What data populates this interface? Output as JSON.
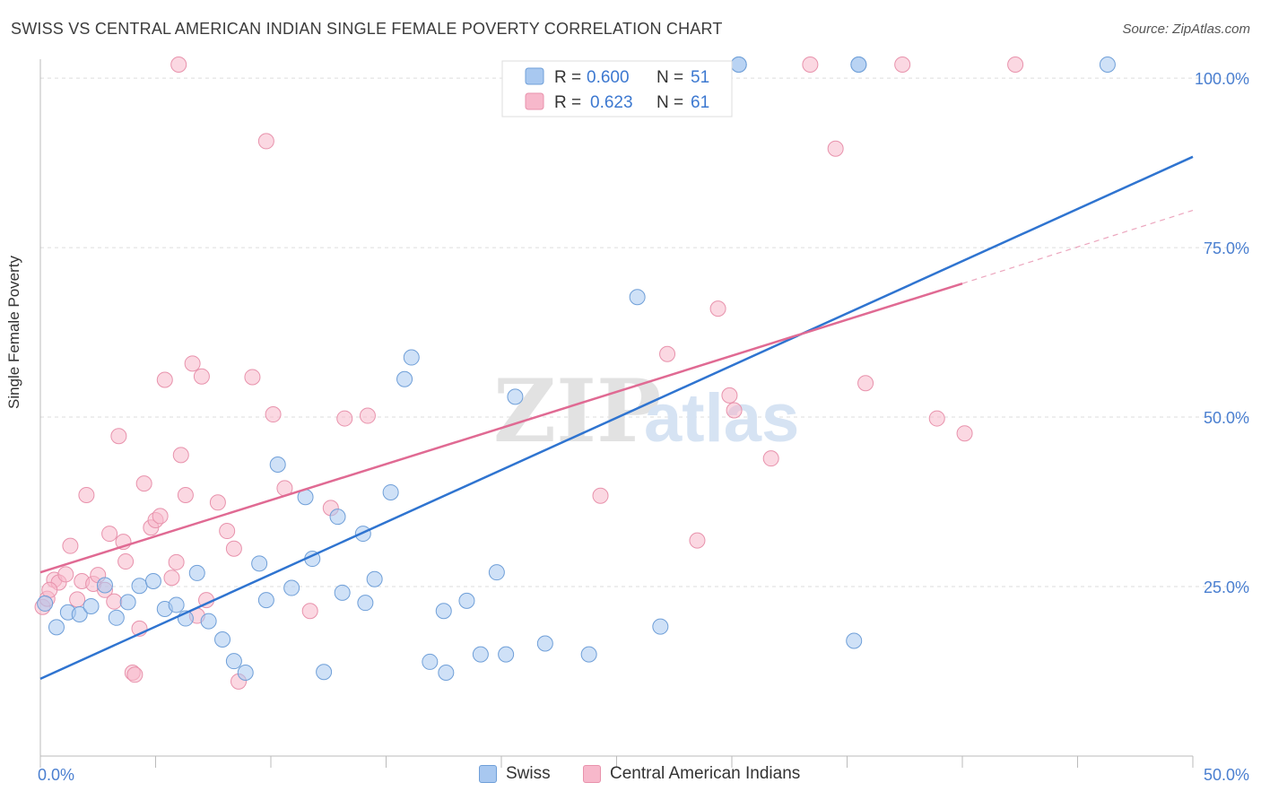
{
  "title": "SWISS VS CENTRAL AMERICAN INDIAN SINGLE FEMALE POVERTY CORRELATION CHART",
  "source": "Source: ZipAtlas.com",
  "watermark": {
    "zip": "ZIP",
    "atlas": "atlas"
  },
  "colors": {
    "swiss_fill": "#a8c8f0",
    "swiss_stroke": "#6f9fd8",
    "swiss_line": "#2f74d0",
    "cai_fill": "#f7b8cb",
    "cai_stroke": "#e892ac",
    "cai_line": "#e06a93",
    "tick_label": "#4a7fd0",
    "grid": "#dddddd"
  },
  "legend": {
    "swiss": {
      "r_label": "R =",
      "r_value": "0.600",
      "n_label": "N =",
      "n_value": "51"
    },
    "cai": {
      "r_label": "R =",
      "r_value": "0.623",
      "n_label": "N =",
      "n_value": "61"
    }
  },
  "chart_data": {
    "type": "scatter",
    "title": "SWISS VS CENTRAL AMERICAN INDIAN SINGLE FEMALE POVERTY CORRELATION CHART",
    "xlabel": "",
    "ylabel": "Single Female Poverty",
    "xlim": [
      0,
      50
    ],
    "ylim": [
      0,
      102
    ],
    "x_tick_labels": [
      "0.0%",
      "50.0%"
    ],
    "y_ticks": [
      25,
      50,
      75,
      100
    ],
    "y_tick_labels": [
      "25.0%",
      "50.0%",
      "75.0%",
      "100.0%"
    ],
    "grid": true,
    "legend_position": "top-center",
    "series": [
      {
        "name": "Swiss",
        "regression": {
          "x": [
            0,
            50
          ],
          "y": [
            11.4,
            88.4
          ]
        },
        "points": [
          [
            0.2,
            22.5
          ],
          [
            0.7,
            19.0
          ],
          [
            1.2,
            21.2
          ],
          [
            1.7,
            20.9
          ],
          [
            2.2,
            22.1
          ],
          [
            2.8,
            25.2
          ],
          [
            3.3,
            20.4
          ],
          [
            3.8,
            22.7
          ],
          [
            4.3,
            25.1
          ],
          [
            4.9,
            25.8
          ],
          [
            5.4,
            21.7
          ],
          [
            5.9,
            22.3
          ],
          [
            6.3,
            20.3
          ],
          [
            6.8,
            27.0
          ],
          [
            7.3,
            19.9
          ],
          [
            7.9,
            17.2
          ],
          [
            8.4,
            14.0
          ],
          [
            8.9,
            12.3
          ],
          [
            9.5,
            28.4
          ],
          [
            9.8,
            23.0
          ],
          [
            10.3,
            43.0
          ],
          [
            10.9,
            24.8
          ],
          [
            11.5,
            38.2
          ],
          [
            11.8,
            29.1
          ],
          [
            12.3,
            12.4
          ],
          [
            12.9,
            35.3
          ],
          [
            13.1,
            24.1
          ],
          [
            14.0,
            32.8
          ],
          [
            14.1,
            22.6
          ],
          [
            14.5,
            26.1
          ],
          [
            15.2,
            38.9
          ],
          [
            15.8,
            55.6
          ],
          [
            16.1,
            58.8
          ],
          [
            16.9,
            13.9
          ],
          [
            17.5,
            21.4
          ],
          [
            17.6,
            12.3
          ],
          [
            18.5,
            22.9
          ],
          [
            19.1,
            15.0
          ],
          [
            19.8,
            27.1
          ],
          [
            20.2,
            15.0
          ],
          [
            20.6,
            53.0
          ],
          [
            21.9,
            16.6
          ],
          [
            23.8,
            15.0
          ],
          [
            25.9,
            67.7
          ],
          [
            26.9,
            19.1
          ],
          [
            30.3,
            102.0
          ],
          [
            35.3,
            17.0
          ],
          [
            35.5,
            102.0
          ],
          [
            46.3,
            102.0
          ],
          [
            30.3,
            102.0
          ],
          [
            35.5,
            102.0
          ]
        ]
      },
      {
        "name": "Central American Indians",
        "regression": {
          "x": [
            0,
            40
          ],
          "y": [
            27.1,
            69.7
          ]
        },
        "regression_extension": {
          "x": [
            40,
            50
          ],
          "y": [
            69.7,
            80.5
          ]
        },
        "points": [
          [
            0.1,
            22.0
          ],
          [
            0.3,
            23.2
          ],
          [
            0.6,
            26.0
          ],
          [
            0.8,
            25.6
          ],
          [
            1.1,
            26.8
          ],
          [
            1.3,
            31.0
          ],
          [
            1.6,
            23.1
          ],
          [
            1.8,
            25.8
          ],
          [
            2.0,
            38.5
          ],
          [
            2.3,
            25.4
          ],
          [
            2.5,
            26.7
          ],
          [
            2.8,
            24.5
          ],
          [
            3.0,
            32.8
          ],
          [
            3.2,
            22.8
          ],
          [
            3.4,
            47.2
          ],
          [
            3.6,
            31.6
          ],
          [
            3.7,
            28.7
          ],
          [
            4.0,
            12.3
          ],
          [
            4.1,
            12.0
          ],
          [
            4.3,
            18.8
          ],
          [
            4.5,
            40.2
          ],
          [
            4.8,
            33.7
          ],
          [
            5.0,
            34.8
          ],
          [
            5.2,
            35.4
          ],
          [
            5.4,
            55.5
          ],
          [
            5.7,
            26.3
          ],
          [
            5.9,
            28.6
          ],
          [
            6.1,
            44.4
          ],
          [
            6.3,
            38.5
          ],
          [
            6.6,
            57.9
          ],
          [
            6.8,
            20.7
          ],
          [
            7.0,
            56.0
          ],
          [
            7.2,
            23.0
          ],
          [
            7.7,
            37.4
          ],
          [
            8.1,
            33.2
          ],
          [
            8.4,
            30.6
          ],
          [
            8.6,
            11.0
          ],
          [
            9.2,
            55.9
          ],
          [
            9.8,
            90.7
          ],
          [
            10.1,
            50.4
          ],
          [
            10.6,
            39.5
          ],
          [
            11.7,
            21.4
          ],
          [
            12.6,
            36.6
          ],
          [
            13.2,
            49.8
          ],
          [
            14.2,
            50.2
          ],
          [
            24.3,
            38.4
          ],
          [
            27.2,
            59.3
          ],
          [
            28.5,
            31.8
          ],
          [
            29.4,
            66.0
          ],
          [
            29.9,
            53.2
          ],
          [
            30.1,
            51.0
          ],
          [
            31.7,
            43.9
          ],
          [
            33.4,
            102.0
          ],
          [
            34.5,
            89.6
          ],
          [
            35.8,
            55.0
          ],
          [
            37.4,
            102.0
          ],
          [
            38.9,
            49.8
          ],
          [
            40.1,
            47.6
          ],
          [
            42.3,
            102.0
          ],
          [
            6.0,
            102.0
          ],
          [
            0.4,
            24.5
          ]
        ]
      }
    ]
  },
  "bottom_legend": {
    "swiss": "Swiss",
    "cai": "Central American Indians"
  }
}
